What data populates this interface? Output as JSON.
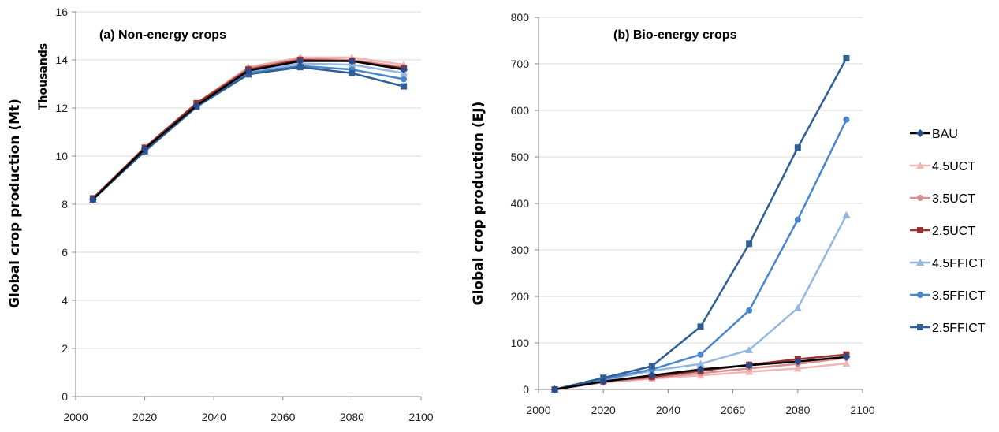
{
  "chart_data": [
    {
      "type": "line",
      "title": "(a) Non-energy crops",
      "xlabel": "",
      "ylabel": "Global crop production (Mt)",
      "y_units_label": "Thousands",
      "xlim": [
        2000,
        2100
      ],
      "ylim": [
        0,
        16
      ],
      "x_ticks": [
        2000,
        2020,
        2040,
        2060,
        2080,
        2100
      ],
      "y_ticks": [
        0,
        2,
        4,
        6,
        8,
        10,
        12,
        14,
        16
      ],
      "grid": true,
      "x": [
        2005,
        2020,
        2035,
        2050,
        2065,
        2080,
        2095
      ],
      "series": [
        {
          "name": "BAU",
          "values": [
            8.2,
            10.3,
            12.1,
            13.55,
            13.95,
            13.95,
            13.6
          ]
        },
        {
          "name": "4.5UCT",
          "values": [
            8.2,
            10.35,
            12.2,
            13.7,
            14.1,
            14.1,
            13.8
          ]
        },
        {
          "name": "3.5UCT",
          "values": [
            8.2,
            10.35,
            12.2,
            13.65,
            14.05,
            14.0,
            13.7
          ]
        },
        {
          "name": "2.5UCT",
          "values": [
            8.25,
            10.35,
            12.2,
            13.6,
            14.0,
            13.95,
            13.65
          ]
        },
        {
          "name": "4.5FFICT",
          "values": [
            8.2,
            10.25,
            12.1,
            13.5,
            13.85,
            13.8,
            13.45
          ]
        },
        {
          "name": "3.5FFICT",
          "values": [
            8.2,
            10.2,
            12.05,
            13.45,
            13.75,
            13.6,
            13.2
          ]
        },
        {
          "name": "2.5FFICT",
          "values": [
            8.2,
            10.2,
            12.05,
            13.4,
            13.7,
            13.45,
            12.9
          ]
        }
      ]
    },
    {
      "type": "line",
      "title": "(b) Bio-energy crops",
      "xlabel": "",
      "ylabel": "Global crop production (EJ)",
      "xlim": [
        2000,
        2100
      ],
      "ylim": [
        0,
        800
      ],
      "x_ticks": [
        2000,
        2020,
        2040,
        2060,
        2080,
        2100
      ],
      "y_ticks": [
        0,
        100,
        200,
        300,
        400,
        500,
        600,
        700,
        800
      ],
      "grid": true,
      "x": [
        2005,
        2020,
        2035,
        2050,
        2065,
        2080,
        2095
      ],
      "series": [
        {
          "name": "BAU",
          "values": [
            0,
            17,
            30,
            43,
            52,
            60,
            70
          ]
        },
        {
          "name": "4.5UCT",
          "values": [
            0,
            15,
            23,
            30,
            38,
            45,
            56
          ]
        },
        {
          "name": "3.5UCT",
          "values": [
            0,
            16,
            25,
            35,
            45,
            55,
            68
          ]
        },
        {
          "name": "2.5UCT",
          "values": [
            0,
            18,
            27,
            40,
            53,
            65,
            75
          ]
        },
        {
          "name": "4.5FFICT",
          "values": [
            0,
            20,
            40,
            55,
            85,
            175,
            375
          ]
        },
        {
          "name": "3.5FFICT",
          "values": [
            0,
            22,
            43,
            75,
            170,
            365,
            580
          ]
        },
        {
          "name": "2.5FFICT",
          "values": [
            0,
            25,
            50,
            135,
            313,
            520,
            712
          ]
        }
      ]
    }
  ],
  "legend": [
    {
      "name": "BAU",
      "color": "#2b4a8a",
      "line_color": "#000000",
      "marker": "diamond"
    },
    {
      "name": "4.5UCT",
      "color": "#f2b6b6",
      "marker": "triangle"
    },
    {
      "name": "3.5UCT",
      "color": "#d88f8f",
      "marker": "circle"
    },
    {
      "name": "2.5UCT",
      "color": "#9b3232",
      "marker": "square"
    },
    {
      "name": "4.5FFICT",
      "color": "#94b8e0",
      "marker": "triangle"
    },
    {
      "name": "3.5FFICT",
      "color": "#4a86cc",
      "marker": "circle"
    },
    {
      "name": "2.5FFICT",
      "color": "#2f5f93",
      "marker": "square"
    }
  ]
}
